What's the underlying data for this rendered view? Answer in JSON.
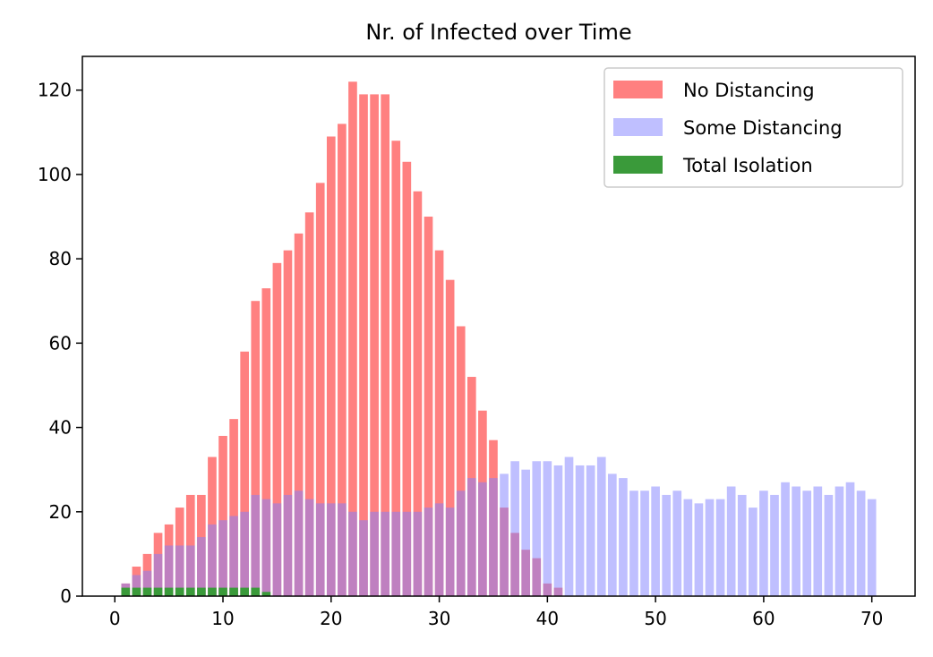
{
  "chart_data": {
    "type": "bar",
    "title": "Nr. of Infected over Time",
    "xlabel": "",
    "ylabel": "",
    "xlim": [
      -3,
      74
    ],
    "ylim": [
      0,
      128
    ],
    "xticks": [
      0,
      10,
      20,
      30,
      40,
      50,
      60,
      70
    ],
    "yticks": [
      0,
      20,
      40,
      60,
      80,
      100,
      120
    ],
    "grid": false,
    "legend_position": "top-right",
    "x": [
      1,
      2,
      3,
      4,
      5,
      6,
      7,
      8,
      9,
      10,
      11,
      12,
      13,
      14,
      15,
      16,
      17,
      18,
      19,
      20,
      21,
      22,
      23,
      24,
      25,
      26,
      27,
      28,
      29,
      30,
      31,
      32,
      33,
      34,
      35,
      36,
      37,
      38,
      39,
      40,
      41,
      42,
      43,
      44,
      45,
      46,
      47,
      48,
      49,
      50,
      51,
      52,
      53,
      54,
      55,
      56,
      57,
      58,
      59,
      60,
      61,
      62,
      63,
      64,
      65,
      66,
      67,
      68,
      69,
      70
    ],
    "series": [
      {
        "name": "No Distancing",
        "color": "#ff8080",
        "values": [
          3,
          7,
          10,
          15,
          17,
          21,
          24,
          24,
          33,
          38,
          42,
          58,
          70,
          73,
          79,
          82,
          86,
          91,
          98,
          109,
          112,
          122,
          119,
          119,
          119,
          108,
          103,
          96,
          90,
          82,
          75,
          64,
          52,
          44,
          37,
          21,
          15,
          11,
          9,
          3,
          2,
          0,
          0,
          0,
          0,
          0,
          0,
          0,
          0,
          0,
          0,
          0,
          0,
          0,
          0,
          0,
          0,
          0,
          0,
          0,
          0,
          0,
          0,
          0,
          0,
          0,
          0,
          0,
          0,
          0
        ]
      },
      {
        "name": "Some Distancing",
        "color": "#8080ff",
        "values": [
          3,
          5,
          6,
          10,
          12,
          12,
          12,
          14,
          17,
          18,
          19,
          20,
          24,
          23,
          22,
          24,
          25,
          23,
          22,
          22,
          22,
          20,
          18,
          20,
          20,
          20,
          20,
          20,
          21,
          22,
          21,
          25,
          28,
          27,
          28,
          29,
          32,
          30,
          32,
          32,
          31,
          33,
          31,
          31,
          33,
          29,
          28,
          25,
          25,
          26,
          24,
          25,
          23,
          22,
          23,
          23,
          26,
          24,
          21,
          25,
          24,
          27,
          26,
          25,
          26,
          24,
          26,
          27,
          25,
          23
        ]
      },
      {
        "name": "Total Isolation",
        "color": "#3a9a3a",
        "values": [
          2,
          2,
          2,
          2,
          2,
          2,
          2,
          2,
          2,
          2,
          2,
          2,
          2,
          1,
          0,
          0,
          0,
          0,
          0,
          0,
          0,
          0,
          0,
          0,
          0,
          0,
          0,
          0,
          0,
          0,
          0,
          0,
          0,
          0,
          0,
          0,
          0,
          0,
          0,
          0,
          0,
          0,
          0,
          0,
          0,
          0,
          0,
          0,
          0,
          0,
          0,
          0,
          0,
          0,
          0,
          0,
          0,
          0,
          0,
          0,
          0,
          0,
          0,
          0,
          0,
          0,
          0,
          0,
          0,
          0
        ]
      }
    ]
  }
}
